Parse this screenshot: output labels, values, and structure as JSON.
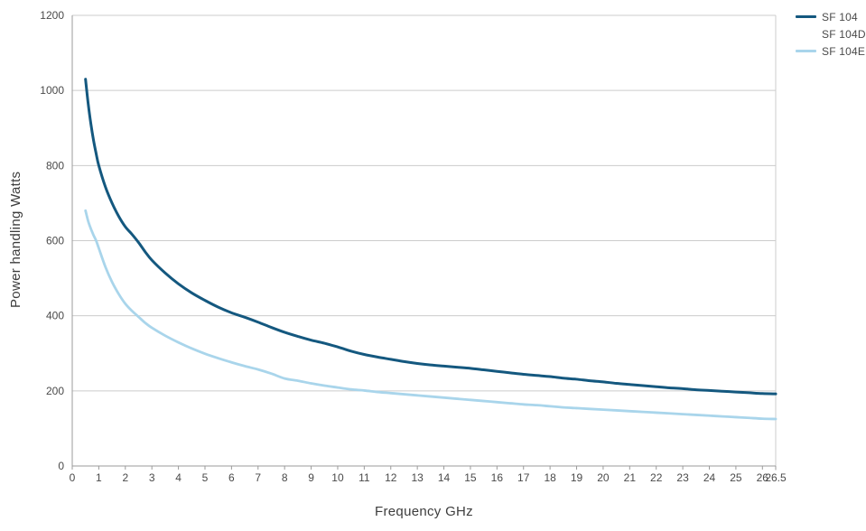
{
  "chart_data": {
    "type": "line",
    "title": "",
    "xlabel": "Frequency GHz",
    "ylabel": "Power handling Watts",
    "x_range": [
      0,
      26.5
    ],
    "y_range": [
      0,
      1200
    ],
    "x_ticks": [
      0,
      1,
      2,
      3,
      4,
      5,
      6,
      7,
      8,
      9,
      10,
      11,
      12,
      13,
      14,
      15,
      16,
      17,
      18,
      19,
      20,
      21,
      22,
      23,
      24,
      25,
      26,
      26.5
    ],
    "y_ticks": [
      0,
      200,
      400,
      600,
      800,
      1000,
      1200
    ],
    "grid": "horizontal",
    "legend_position": "top-right",
    "colors": {
      "gridline": "#cccccc",
      "axis": "#9b9b9b",
      "tick_text": "#4a4a4a",
      "title_text": "#3d3d3d",
      "sf104": "#14587f",
      "sf104e": "#a9d5eb"
    },
    "legend": [
      {
        "label": "SF 104",
        "color": "#14587f"
      },
      {
        "label": "SF 104D",
        "color": null
      },
      {
        "label": "SF 104E",
        "color": "#a9d5eb"
      }
    ],
    "series": [
      {
        "name": "SF 104",
        "color": "#14587f",
        "stroke_width": 3,
        "points": [
          [
            0.5,
            1030
          ],
          [
            0.6,
            965
          ],
          [
            0.7,
            912
          ],
          [
            0.8,
            868
          ],
          [
            0.9,
            832
          ],
          [
            1,
            800
          ],
          [
            1.25,
            743
          ],
          [
            1.5,
            700
          ],
          [
            1.75,
            665
          ],
          [
            2,
            637
          ],
          [
            2.25,
            617
          ],
          [
            2.5,
            595
          ],
          [
            2.75,
            570
          ],
          [
            3,
            548
          ],
          [
            3.5,
            514
          ],
          [
            4,
            485
          ],
          [
            4.5,
            461
          ],
          [
            5,
            441
          ],
          [
            5.5,
            423
          ],
          [
            6,
            408
          ],
          [
            6.5,
            396
          ],
          [
            7,
            383
          ],
          [
            7.5,
            369
          ],
          [
            8,
            356
          ],
          [
            8.5,
            345
          ],
          [
            9,
            335
          ],
          [
            9.5,
            327
          ],
          [
            10,
            317
          ],
          [
            10.5,
            306
          ],
          [
            11,
            297
          ],
          [
            11.5,
            290
          ],
          [
            12,
            284
          ],
          [
            12.5,
            278
          ],
          [
            13,
            273
          ],
          [
            13.5,
            269
          ],
          [
            14,
            266
          ],
          [
            14.5,
            263
          ],
          [
            15,
            260
          ],
          [
            15.5,
            256
          ],
          [
            16,
            252
          ],
          [
            16.5,
            248
          ],
          [
            17,
            244
          ],
          [
            17.5,
            241
          ],
          [
            18,
            238
          ],
          [
            18.5,
            234
          ],
          [
            19,
            231
          ],
          [
            19.5,
            227
          ],
          [
            20,
            224
          ],
          [
            20.5,
            220
          ],
          [
            21,
            217
          ],
          [
            21.5,
            214
          ],
          [
            22,
            211
          ],
          [
            22.5,
            208
          ],
          [
            23,
            206
          ],
          [
            23.5,
            203
          ],
          [
            24,
            201
          ],
          [
            24.5,
            199
          ],
          [
            25,
            197
          ],
          [
            25.5,
            195
          ],
          [
            26,
            193
          ],
          [
            26.5,
            192
          ]
        ]
      },
      {
        "name": "SF 104E",
        "color": "#a9d5eb",
        "stroke_width": 2.8,
        "points": [
          [
            0.5,
            680
          ],
          [
            0.6,
            652
          ],
          [
            0.7,
            632
          ],
          [
            0.8,
            615
          ],
          [
            0.9,
            600
          ],
          [
            1,
            580
          ],
          [
            1.25,
            530
          ],
          [
            1.5,
            490
          ],
          [
            1.75,
            458
          ],
          [
            2,
            432
          ],
          [
            2.25,
            413
          ],
          [
            2.5,
            397
          ],
          [
            2.75,
            381
          ],
          [
            3,
            368
          ],
          [
            3.5,
            347
          ],
          [
            4,
            329
          ],
          [
            4.5,
            313
          ],
          [
            5,
            299
          ],
          [
            5.5,
            287
          ],
          [
            6,
            276
          ],
          [
            6.5,
            266
          ],
          [
            7,
            257
          ],
          [
            7.5,
            246
          ],
          [
            8,
            233
          ],
          [
            8.5,
            227
          ],
          [
            9,
            220
          ],
          [
            9.5,
            214
          ],
          [
            10,
            209
          ],
          [
            10.5,
            204
          ],
          [
            11,
            201
          ],
          [
            11.5,
            197
          ],
          [
            12,
            194
          ],
          [
            12.5,
            191
          ],
          [
            13,
            188
          ],
          [
            13.5,
            185
          ],
          [
            14,
            182
          ],
          [
            14.5,
            179
          ],
          [
            15,
            176
          ],
          [
            15.5,
            173
          ],
          [
            16,
            170
          ],
          [
            16.5,
            167
          ],
          [
            17,
            164
          ],
          [
            17.5,
            162
          ],
          [
            18,
            159
          ],
          [
            18.5,
            156
          ],
          [
            19,
            154
          ],
          [
            19.5,
            152
          ],
          [
            20,
            150
          ],
          [
            20.5,
            148
          ],
          [
            21,
            146
          ],
          [
            21.5,
            144
          ],
          [
            22,
            142
          ],
          [
            22.5,
            140
          ],
          [
            23,
            138
          ],
          [
            23.5,
            136
          ],
          [
            24,
            134
          ],
          [
            24.5,
            132
          ],
          [
            25,
            130
          ],
          [
            25.5,
            128
          ],
          [
            26,
            126
          ],
          [
            26.5,
            125
          ]
        ]
      }
    ]
  }
}
